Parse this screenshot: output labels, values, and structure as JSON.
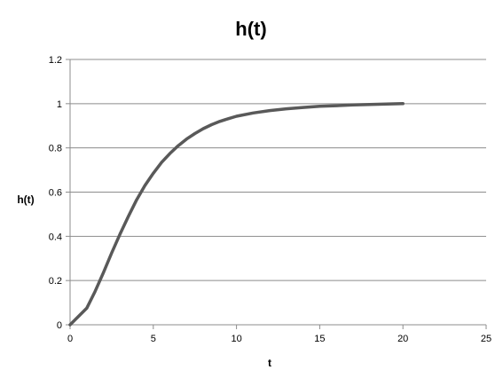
{
  "chart_data": {
    "type": "line",
    "title": "h(t)",
    "xlabel": "t",
    "ylabel": "h(t)",
    "xlim": [
      0,
      25
    ],
    "ylim": [
      0,
      1.2
    ],
    "x_ticks": [
      "0",
      "5",
      "10",
      "15",
      "20",
      "25"
    ],
    "y_ticks": [
      "0",
      "0.2",
      "0.4",
      "0.6",
      "0.8",
      "1",
      "1.2"
    ],
    "x_tick_values": [
      0,
      5,
      10,
      15,
      20,
      25
    ],
    "y_tick_values": [
      0,
      0.2,
      0.4,
      0.6,
      0.8,
      1.0,
      1.2
    ],
    "grid": true,
    "legend": "none",
    "series": [
      {
        "color": "#595959",
        "x": [
          0,
          1,
          1.5,
          2,
          2.5,
          3,
          3.5,
          4,
          4.5,
          5,
          5.5,
          6,
          6.5,
          7,
          7.5,
          8,
          8.5,
          9,
          9.5,
          10,
          11,
          12,
          13,
          14,
          15,
          16,
          17,
          18,
          19,
          20
        ],
        "y": [
          0,
          0.075,
          0.15,
          0.235,
          0.325,
          0.41,
          0.49,
          0.565,
          0.63,
          0.685,
          0.735,
          0.775,
          0.81,
          0.84,
          0.865,
          0.887,
          0.905,
          0.92,
          0.932,
          0.943,
          0.958,
          0.969,
          0.977,
          0.983,
          0.988,
          0.991,
          0.994,
          0.996,
          0.998,
          1.0
        ]
      }
    ]
  }
}
